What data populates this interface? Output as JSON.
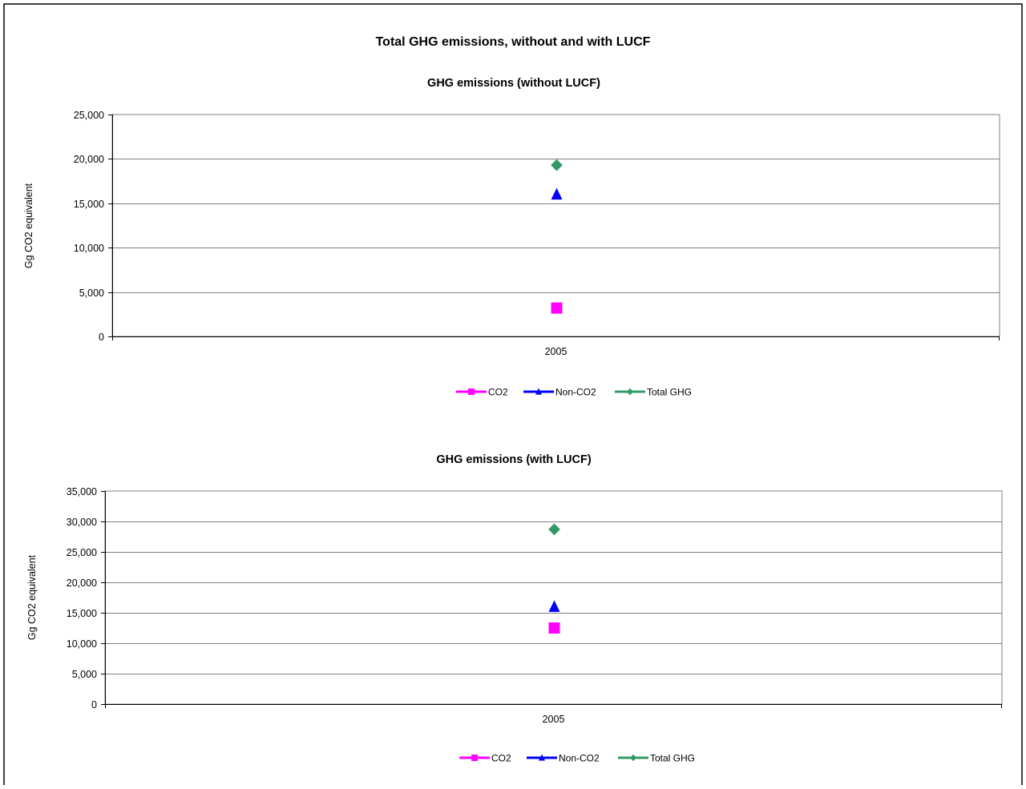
{
  "page_title": "Total GHG emissions, without and with LUCF",
  "chart_data": [
    {
      "type": "scatter",
      "title": "GHG emissions (without LUCF)",
      "xlabel": "",
      "ylabel": "Gg CO2 equivalent",
      "categories": [
        "2005"
      ],
      "ylim": [
        0,
        25000
      ],
      "yticks": [
        0,
        5000,
        10000,
        15000,
        20000,
        25000
      ],
      "ytick_labels": [
        "0",
        "5,000",
        "10,000",
        "15,000",
        "20,000",
        "25,000"
      ],
      "grid": true,
      "legend_position": "bottom",
      "series": [
        {
          "name": "CO2",
          "values": [
            3200
          ],
          "color": "#FF00FF",
          "marker": "square"
        },
        {
          "name": "Non-CO2",
          "values": [
            16000
          ],
          "color": "#0000FF",
          "marker": "triangle"
        },
        {
          "name": "Total GHG",
          "values": [
            19300
          ],
          "color": "#339966",
          "marker": "diamond"
        }
      ]
    },
    {
      "type": "scatter",
      "title": "GHG emissions (with LUCF)",
      "xlabel": "",
      "ylabel": "Gg CO2 equivalent",
      "categories": [
        "2005"
      ],
      "ylim": [
        0,
        35000
      ],
      "yticks": [
        0,
        5000,
        10000,
        15000,
        20000,
        25000,
        30000,
        35000
      ],
      "ytick_labels": [
        "0",
        "5,000",
        "10,000",
        "15,000",
        "20,000",
        "25,000",
        "30,000",
        "35,000"
      ],
      "grid": true,
      "legend_position": "bottom",
      "series": [
        {
          "name": "CO2",
          "values": [
            12500
          ],
          "color": "#FF00FF",
          "marker": "square"
        },
        {
          "name": "Non-CO2",
          "values": [
            16000
          ],
          "color": "#0000FF",
          "marker": "triangle"
        },
        {
          "name": "Total GHG",
          "values": [
            28700
          ],
          "color": "#339966",
          "marker": "diamond"
        }
      ]
    }
  ]
}
